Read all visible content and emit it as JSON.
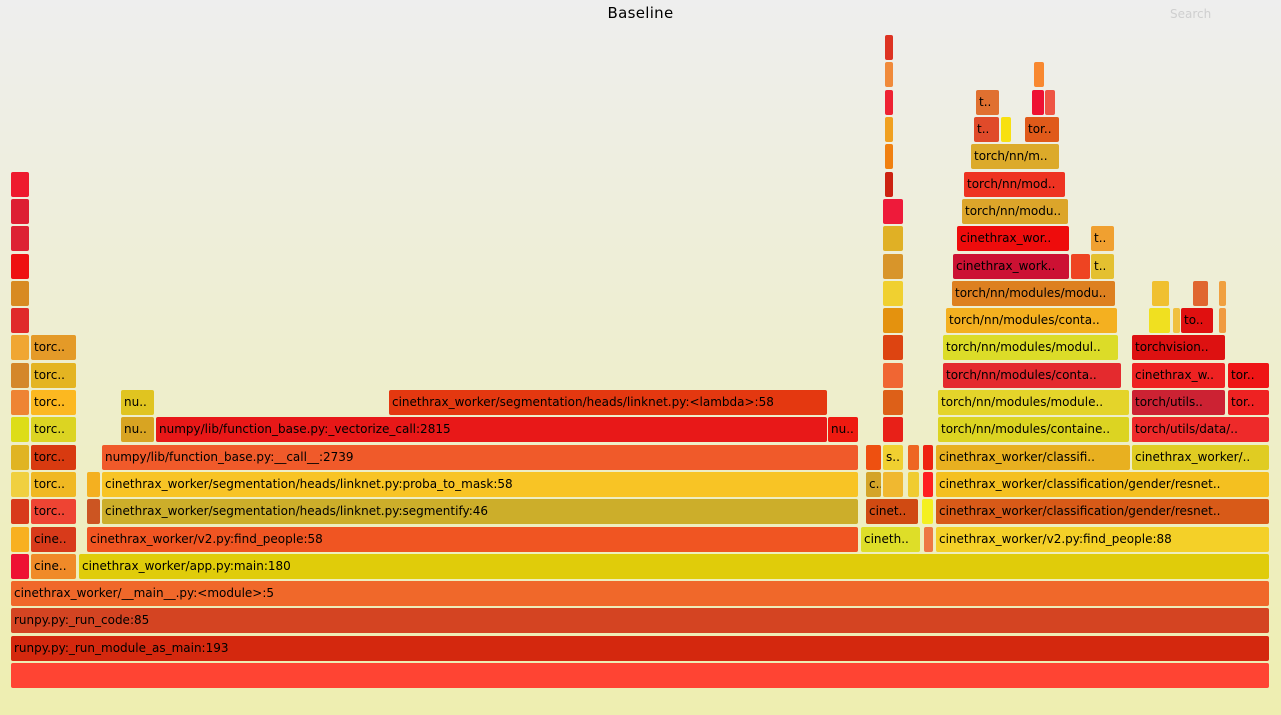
{
  "title": "Baseline",
  "search_label": "Search",
  "chart_data": {
    "type": "flamegraph",
    "title": "Baseline",
    "total_samples": 1259,
    "unit": "samples",
    "frames": [
      {
        "d": 0,
        "s": 0,
        "w": 1259,
        "c": "#ff4433",
        "t": ""
      },
      {
        "d": 1,
        "s": 0,
        "w": 1259,
        "c": "#d4280e",
        "t": "runpy.py:_run_module_as_main:193"
      },
      {
        "d": 2,
        "s": 0,
        "w": 1259,
        "c": "#d44422",
        "t": "runpy.py:_run_code:85"
      },
      {
        "d": 3,
        "s": 0,
        "w": 1259,
        "c": "#f0682a",
        "t": "cinethrax_worker/__main__.py:<module>:5"
      },
      {
        "d": 4,
        "s": 0,
        "w": 19,
        "c": "#ee1133",
        "t": ""
      },
      {
        "d": 4,
        "s": 20,
        "w": 46,
        "c": "#f08a28",
        "t": "cine.."
      },
      {
        "d": 4,
        "s": 68,
        "w": 1191,
        "c": "#e0cc0a",
        "t": "cinethrax_worker/app.py:main:180"
      },
      {
        "d": 5,
        "s": 0,
        "w": 19,
        "c": "#f8b020",
        "t": ""
      },
      {
        "d": 5,
        "s": 20,
        "w": 46,
        "c": "#d83a1a",
        "t": "cine.."
      },
      {
        "d": 5,
        "s": 76,
        "w": 772,
        "c": "#f05522",
        "t": "cinethrax_worker/v2.py:find_people:58"
      },
      {
        "d": 5,
        "s": 850,
        "w": 60,
        "c": "#dede28",
        "t": "cineth.."
      },
      {
        "d": 5,
        "s": 913,
        "w": 10,
        "c": "#ee7744",
        "t": ""
      },
      {
        "d": 5,
        "s": 925,
        "w": 334,
        "c": "#f4d028",
        "t": "cinethrax_worker/v2.py:find_people:88"
      },
      {
        "d": 6,
        "s": 0,
        "w": 19,
        "c": "#d83a1a",
        "t": ""
      },
      {
        "d": 6,
        "s": 20,
        "w": 46,
        "c": "#ee4433",
        "t": "torc.."
      },
      {
        "d": 6,
        "s": 76,
        "w": 14,
        "c": "#cc5522",
        "t": ""
      },
      {
        "d": 6,
        "s": 91,
        "w": 757,
        "c": "#ccae2a",
        "t": "cinethrax_worker/segmentation/heads/linknet.py:segmentify:46"
      },
      {
        "d": 6,
        "s": 855,
        "w": 53,
        "c": "#d04a12",
        "t": "cinet.."
      },
      {
        "d": 6,
        "s": 911,
        "w": 12,
        "c": "#f4f020",
        "t": ""
      },
      {
        "d": 6,
        "s": 925,
        "w": 334,
        "c": "#d85a18",
        "t": "cinethrax_worker/classification/gender/resnet.."
      },
      {
        "d": 7,
        "s": 0,
        "w": 19,
        "c": "#f0d040",
        "t": ""
      },
      {
        "d": 7,
        "s": 20,
        "w": 46,
        "c": "#f0b822",
        "t": "torc.."
      },
      {
        "d": 7,
        "s": 76,
        "w": 14,
        "c": "#f4b020",
        "t": ""
      },
      {
        "d": 7,
        "s": 91,
        "w": 757,
        "c": "#f8c425",
        "t": "cinethrax_worker/segmentation/heads/linknet.py:proba_to_mask:58"
      },
      {
        "d": 7,
        "s": 855,
        "w": 16,
        "c": "#d4a428",
        "t": "c.."
      },
      {
        "d": 7,
        "s": 872,
        "w": 21,
        "c": "#f0b830",
        "t": ""
      },
      {
        "d": 7,
        "s": 897,
        "w": 12,
        "c": "#f0cc30",
        "t": ""
      },
      {
        "d": 7,
        "s": 912,
        "w": 11,
        "c": "#ff2020",
        "t": ""
      },
      {
        "d": 7,
        "s": 925,
        "w": 334,
        "c": "#f4c020",
        "t": "cinethrax_worker/classification/gender/resnet.."
      },
      {
        "d": 8,
        "s": 0,
        "w": 19,
        "c": "#e0b422",
        "t": ""
      },
      {
        "d": 8,
        "s": 20,
        "w": 46,
        "c": "#d83a10",
        "t": "torc.."
      },
      {
        "d": 8,
        "s": 91,
        "w": 757,
        "c": "#f05a2a",
        "t": "numpy/lib/function_base.py:__call__:2739"
      },
      {
        "d": 8,
        "s": 855,
        "w": 16,
        "c": "#ee5010",
        "t": ""
      },
      {
        "d": 8,
        "s": 872,
        "w": 21,
        "c": "#f0d030",
        "t": "s.."
      },
      {
        "d": 8,
        "s": 897,
        "w": 12,
        "c": "#ee6622",
        "t": ""
      },
      {
        "d": 8,
        "s": 912,
        "w": 11,
        "c": "#ee2211",
        "t": ""
      },
      {
        "d": 8,
        "s": 925,
        "w": 195,
        "c": "#e8b020",
        "t": "cinethrax_worker/classifi.."
      },
      {
        "d": 8,
        "s": 1121,
        "w": 138,
        "c": "#e0cc22",
        "t": "cinethrax_worker/.."
      },
      {
        "d": 9,
        "s": 0,
        "w": 19,
        "c": "#dddd18",
        "t": ""
      },
      {
        "d": 9,
        "s": 20,
        "w": 46,
        "c": "#dcd422",
        "t": "torc.."
      },
      {
        "d": 9,
        "s": 110,
        "w": 34,
        "c": "#d8a422",
        "t": "nu.."
      },
      {
        "d": 9,
        "s": 145,
        "w": 672,
        "c": "#e81818",
        "t": "numpy/lib/function_base.py:_vectorize_call:2815"
      },
      {
        "d": 9,
        "s": 817,
        "w": 31,
        "c": "#ee1a10",
        "t": "nu.."
      },
      {
        "d": 9,
        "s": 872,
        "w": 21,
        "c": "#e82018",
        "t": ""
      },
      {
        "d": 9,
        "s": 927,
        "w": 192,
        "c": "#dcd422",
        "t": "torch/nn/modules/containe.."
      },
      {
        "d": 9,
        "s": 1121,
        "w": 138,
        "c": "#ee2a2a",
        "t": "torch/utils/data/.."
      },
      {
        "d": 10,
        "s": 0,
        "w": 19,
        "c": "#ee8433",
        "t": ""
      },
      {
        "d": 10,
        "s": 20,
        "w": 46,
        "c": "#fcb820",
        "t": "torc.."
      },
      {
        "d": 10,
        "s": 110,
        "w": 34,
        "c": "#e0c420",
        "t": "nu.."
      },
      {
        "d": 10,
        "s": 378,
        "w": 439,
        "c": "#e43810",
        "t": "cinethrax_worker/segmentation/heads/linknet.py:<lambda>:58"
      },
      {
        "d": 10,
        "s": 872,
        "w": 21,
        "c": "#dd6018",
        "t": ""
      },
      {
        "d": 10,
        "s": 927,
        "w": 192,
        "c": "#e4d42a",
        "t": "torch/nn/modules/module.."
      },
      {
        "d": 10,
        "s": 1121,
        "w": 94,
        "c": "#cc2233",
        "t": "torch/utils.."
      },
      {
        "d": 10,
        "s": 1217,
        "w": 42,
        "c": "#ee2222",
        "t": "tor.."
      },
      {
        "d": 11,
        "s": 0,
        "w": 19,
        "c": "#d4872a",
        "t": ""
      },
      {
        "d": 11,
        "s": 20,
        "w": 46,
        "c": "#e4b422",
        "t": "torc.."
      },
      {
        "d": 11,
        "s": 872,
        "w": 21,
        "c": "#f06633",
        "t": ""
      },
      {
        "d": 11,
        "s": 932,
        "w": 179,
        "c": "#e42a2e",
        "t": "torch/nn/modules/conta.."
      },
      {
        "d": 11,
        "s": 1121,
        "w": 94,
        "c": "#ee2222",
        "t": "cinethrax_w.."
      },
      {
        "d": 11,
        "s": 1217,
        "w": 42,
        "c": "#ee1515",
        "t": "tor.."
      },
      {
        "d": 12,
        "s": 0,
        "w": 19,
        "c": "#f0a633",
        "t": ""
      },
      {
        "d": 12,
        "s": 20,
        "w": 46,
        "c": "#e49a28",
        "t": "torc.."
      },
      {
        "d": 12,
        "s": 872,
        "w": 21,
        "c": "#dd4411",
        "t": ""
      },
      {
        "d": 12,
        "s": 932,
        "w": 176,
        "c": "#dcdc28",
        "t": "torch/nn/modules/modul.."
      },
      {
        "d": 12,
        "s": 1121,
        "w": 94,
        "c": "#dd1111",
        "t": "torchvision.."
      },
      {
        "d": 13,
        "s": 0,
        "w": 19,
        "c": "#e02a2a",
        "t": ""
      },
      {
        "d": 13,
        "s": 872,
        "w": 21,
        "c": "#e4920e",
        "t": ""
      },
      {
        "d": 13,
        "s": 935,
        "w": 172,
        "c": "#f4b020",
        "t": "torch/nn/modules/conta.."
      },
      {
        "d": 13,
        "s": 1138,
        "w": 22,
        "c": "#f0e020",
        "t": ""
      },
      {
        "d": 13,
        "s": 1162,
        "w": 8,
        "c": "#f0c040",
        "t": ""
      },
      {
        "d": 13,
        "s": 1170,
        "w": 33,
        "c": "#e01010",
        "t": "to.."
      },
      {
        "d": 13,
        "s": 1208,
        "w": 8,
        "c": "#f09a40",
        "t": ""
      },
      {
        "d": 14,
        "s": 0,
        "w": 19,
        "c": "#d88a22",
        "t": ""
      },
      {
        "d": 14,
        "s": 872,
        "w": 21,
        "c": "#f0d030",
        "t": ""
      },
      {
        "d": 14,
        "s": 941,
        "w": 164,
        "c": "#dd8020",
        "t": "torch/nn/modules/modu.."
      },
      {
        "d": 14,
        "s": 1141,
        "w": 18,
        "c": "#f0c030",
        "t": ""
      },
      {
        "d": 14,
        "s": 1182,
        "w": 16,
        "c": "#e06630",
        "t": ""
      },
      {
        "d": 14,
        "s": 1208,
        "w": 8,
        "c": "#f0a040",
        "t": ""
      },
      {
        "d": 15,
        "s": 0,
        "w": 19,
        "c": "#ee1111",
        "t": ""
      },
      {
        "d": 15,
        "s": 872,
        "w": 21,
        "c": "#d8952a",
        "t": ""
      },
      {
        "d": 15,
        "s": 942,
        "w": 117,
        "c": "#cc1133",
        "t": "cinethrax_work.."
      },
      {
        "d": 15,
        "s": 1060,
        "w": 20,
        "c": "#ee4422",
        "t": ""
      },
      {
        "d": 15,
        "s": 1080,
        "w": 24,
        "c": "#e4c030",
        "t": "t.."
      },
      {
        "d": 16,
        "s": 0,
        "w": 19,
        "c": "#dd2233",
        "t": ""
      },
      {
        "d": 16,
        "s": 872,
        "w": 21,
        "c": "#e0b025",
        "t": ""
      },
      {
        "d": 16,
        "s": 946,
        "w": 113,
        "c": "#ee0c0c",
        "t": "cinethrax_wor.."
      },
      {
        "d": 16,
        "s": 1080,
        "w": 24,
        "c": "#f0a030",
        "t": "t.."
      },
      {
        "d": 17,
        "s": 0,
        "w": 19,
        "c": "#dd1f33",
        "t": ""
      },
      {
        "d": 17,
        "s": 872,
        "w": 21,
        "c": "#ee1a3a",
        "t": ""
      },
      {
        "d": 17,
        "s": 951,
        "w": 107,
        "c": "#dca52a",
        "t": "torch/nn/modu.."
      },
      {
        "d": 18,
        "s": 0,
        "w": 19,
        "c": "#ee1a2e",
        "t": ""
      },
      {
        "d": 18,
        "s": 874,
        "w": 9,
        "c": "#cc2211",
        "t": ""
      },
      {
        "d": 18,
        "s": 953,
        "w": 102,
        "c": "#ee3322",
        "t": "torch/nn/mod.."
      },
      {
        "d": 19,
        "s": 874,
        "w": 9,
        "c": "#f08010",
        "t": ""
      },
      {
        "d": 19,
        "s": 960,
        "w": 89,
        "c": "#dcaa2a",
        "t": "torch/nn/m.."
      },
      {
        "d": 20,
        "s": 874,
        "w": 9,
        "c": "#f0a020",
        "t": ""
      },
      {
        "d": 20,
        "s": 963,
        "w": 26,
        "c": "#e04a2a",
        "t": "t.."
      },
      {
        "d": 20,
        "s": 990,
        "w": 11,
        "c": "#f8e010",
        "t": ""
      },
      {
        "d": 20,
        "s": 1014,
        "w": 35,
        "c": "#e05a1a",
        "t": "tor.."
      },
      {
        "d": 21,
        "s": 874,
        "w": 9,
        "c": "#ee2233",
        "t": ""
      },
      {
        "d": 21,
        "s": 965,
        "w": 24,
        "c": "#e07030",
        "t": "t.."
      },
      {
        "d": 21,
        "s": 1021,
        "w": 13,
        "c": "#ee1133",
        "t": ""
      },
      {
        "d": 21,
        "s": 1034,
        "w": 11,
        "c": "#ee5544",
        "t": ""
      },
      {
        "d": 22,
        "s": 874,
        "w": 9,
        "c": "#f08a3a",
        "t": ""
      },
      {
        "d": 22,
        "s": 1023,
        "w": 11,
        "c": "#f88830",
        "t": ""
      },
      {
        "d": 23,
        "s": 874,
        "w": 9,
        "c": "#dd3322",
        "t": ""
      }
    ]
  }
}
